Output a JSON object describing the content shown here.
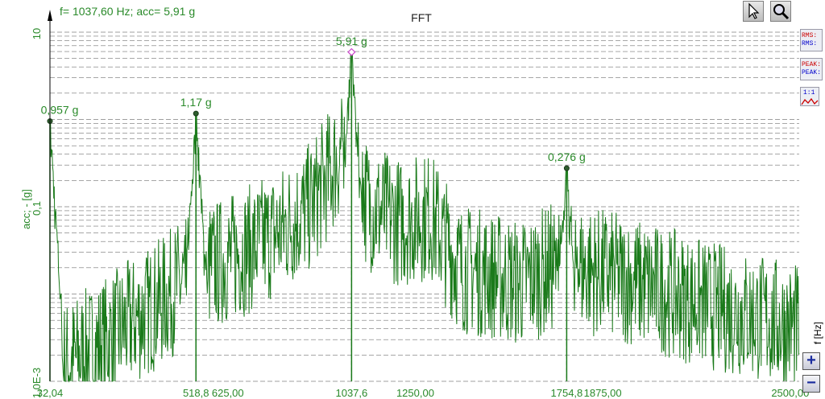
{
  "header": {
    "readout": "f= 1037,60 Hz; acc= 5,91 g",
    "title": "FFT"
  },
  "toolbar": {
    "pointer_icon": "cursor-arrow-icon",
    "zoom_icon": "magnifier-icon"
  },
  "side_buttons": {
    "rms_top": "RMS:",
    "rms_bottom": "RMS:",
    "peak_top": "PEAK:",
    "peak_bottom": "PEAK:",
    "fit_label": "1:1"
  },
  "x_axis_unit": "f [Hz]",
  "zoom_buttons": {
    "plus": "+",
    "minus": "−"
  },
  "colors": {
    "series": "#1a7a1a",
    "axis_text": "#2a8a2a",
    "grid": "#000000",
    "cursor_marker": "#cc44cc",
    "rms_red": "#cc0000",
    "rms_blue": "#0000cc"
  },
  "chart_data": {
    "type": "line",
    "title": "FFT",
    "ylabel": "acc; - [g]",
    "xlabel": "f [Hz]",
    "y_scale": "log",
    "ylim": [
      0.001,
      10
    ],
    "xlim": [
      32.04,
      2530
    ],
    "y_tick_labels": [
      {
        "value": 10,
        "label": "10"
      },
      {
        "value": 0.1,
        "label": "0,1"
      },
      {
        "value": 0.001,
        "label": "1,0E-3"
      }
    ],
    "x_tick_labels": [
      {
        "value": 32.04,
        "label": "32,04"
      },
      {
        "value": 518.8,
        "label": "518,8"
      },
      {
        "value": 625,
        "label": "625,00"
      },
      {
        "value": 1037.6,
        "label": "1037,6"
      },
      {
        "value": 1250,
        "label": "1250,00"
      },
      {
        "value": 1754.8,
        "label": "1754,8"
      },
      {
        "value": 1875,
        "label": "1875,00"
      },
      {
        "value": 2500,
        "label": "2500,00"
      }
    ],
    "grid": "horizontal dashed",
    "peaks": [
      {
        "f": 32.04,
        "acc": 0.957,
        "label": "0,957 g"
      },
      {
        "f": 518.8,
        "acc": 1.17,
        "label": "1,17 g"
      },
      {
        "f": 1037.6,
        "acc": 5.91,
        "label": "5,91 g"
      },
      {
        "f": 1754.8,
        "acc": 0.276,
        "label": "0,276 g"
      }
    ],
    "envelope": [
      {
        "f": 32,
        "acc": 0.002
      },
      {
        "f": 100,
        "acc": 0.0025
      },
      {
        "f": 200,
        "acc": 0.004
      },
      {
        "f": 300,
        "acc": 0.007
      },
      {
        "f": 400,
        "acc": 0.012
      },
      {
        "f": 500,
        "acc": 0.025
      },
      {
        "f": 600,
        "acc": 0.035
      },
      {
        "f": 700,
        "acc": 0.05
      },
      {
        "f": 800,
        "acc": 0.08
      },
      {
        "f": 900,
        "acc": 0.15
      },
      {
        "f": 1000,
        "acc": 0.6
      },
      {
        "f": 1100,
        "acc": 0.15
      },
      {
        "f": 1200,
        "acc": 0.1
      },
      {
        "f": 1300,
        "acc": 0.12
      },
      {
        "f": 1400,
        "acc": 0.03
      },
      {
        "f": 1500,
        "acc": 0.025
      },
      {
        "f": 1600,
        "acc": 0.02
      },
      {
        "f": 1700,
        "acc": 0.03
      },
      {
        "f": 1800,
        "acc": 0.03
      },
      {
        "f": 1900,
        "acc": 0.025
      },
      {
        "f": 2000,
        "acc": 0.02
      },
      {
        "f": 2200,
        "acc": 0.012
      },
      {
        "f": 2400,
        "acc": 0.008
      },
      {
        "f": 2530,
        "acc": 0.006
      }
    ]
  }
}
